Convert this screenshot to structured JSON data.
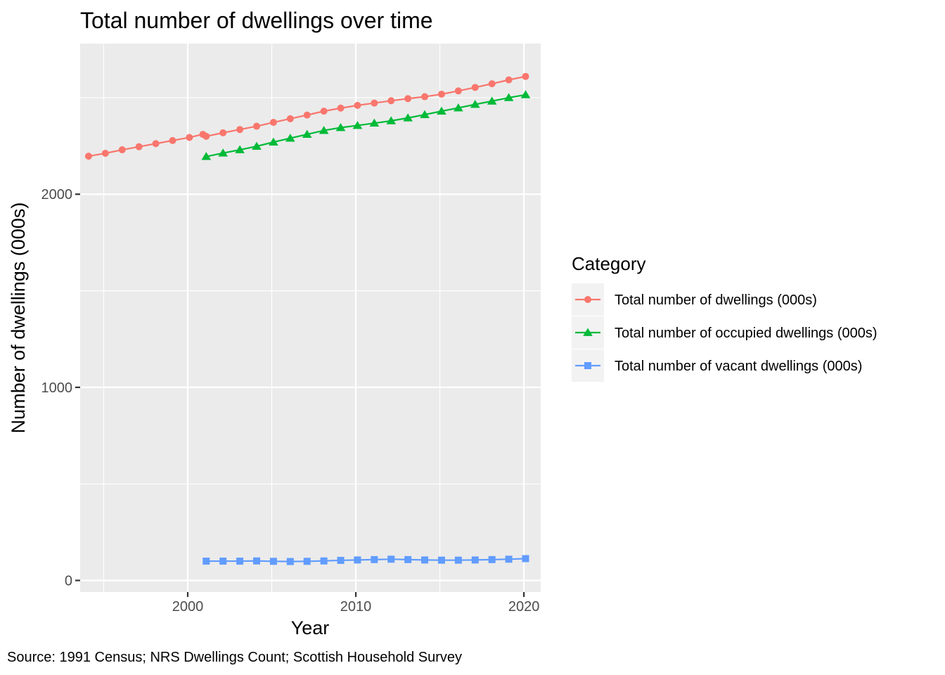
{
  "chart_data": {
    "type": "line",
    "title": "Total number of dwellings over time",
    "xlabel": "Year",
    "ylabel": "Number of dwellings (000s)",
    "caption": "Source: 1991 Census; NRS Dwellings Count; Scottish Household Survey",
    "xlim": [
      1993.6,
      2021.0
    ],
    "ylim": [
      -60,
      2780
    ],
    "x_ticks": [
      2000,
      2010,
      2020
    ],
    "y_ticks": [
      0,
      1000,
      2000
    ],
    "grid": true,
    "legend": {
      "title": "Category",
      "position": "right"
    },
    "series": [
      {
        "name": "Total number of dwellings (000s)",
        "color": "#F8766D",
        "marker": "circle",
        "x": [
          1994.1,
          1995.1,
          1996.1,
          1997.1,
          1998.1,
          1999.1,
          2000.1,
          2000.9,
          2001.1,
          2002.1,
          2003.1,
          2004.1,
          2005.1,
          2006.1,
          2007.1,
          2008.1,
          2009.1,
          2010.1,
          2011.1,
          2012.1,
          2013.1,
          2014.1,
          2015.1,
          2016.1,
          2017.1,
          2018.1,
          2019.1,
          2020.1
        ],
        "values": [
          2197,
          2212,
          2230,
          2246,
          2262,
          2278,
          2294,
          2310,
          2300,
          2318,
          2335,
          2352,
          2372,
          2391,
          2410,
          2430,
          2446,
          2460,
          2472,
          2484,
          2495,
          2505,
          2518,
          2535,
          2553,
          2572,
          2592,
          2610
        ]
      },
      {
        "name": "Total number of occupied dwellings (000s)",
        "color": "#00BA38",
        "marker": "triangle",
        "x": [
          2001.1,
          2002.1,
          2003.1,
          2004.1,
          2005.1,
          2006.1,
          2007.1,
          2008.1,
          2009.1,
          2010.1,
          2011.1,
          2012.1,
          2013.1,
          2014.1,
          2015.1,
          2016.1,
          2017.1,
          2018.1,
          2019.1,
          2020.1
        ],
        "values": [
          2195,
          2213,
          2230,
          2248,
          2270,
          2290,
          2310,
          2330,
          2345,
          2356,
          2368,
          2380,
          2395,
          2412,
          2430,
          2447,
          2465,
          2482,
          2500,
          2515
        ]
      },
      {
        "name": "Total number of vacant dwellings (000s)",
        "color": "#619CFF",
        "marker": "square",
        "x": [
          2001.1,
          2002.1,
          2003.1,
          2004.1,
          2005.1,
          2006.1,
          2007.1,
          2008.1,
          2009.1,
          2010.1,
          2011.1,
          2012.1,
          2013.1,
          2014.1,
          2015.1,
          2016.1,
          2017.1,
          2018.1,
          2019.1,
          2020.1
        ],
        "values": [
          100,
          100,
          100,
          101,
          99,
          98,
          99,
          101,
          104,
          106,
          108,
          110,
          108,
          106,
          105,
          105,
          106,
          108,
          110,
          113
        ]
      }
    ]
  }
}
